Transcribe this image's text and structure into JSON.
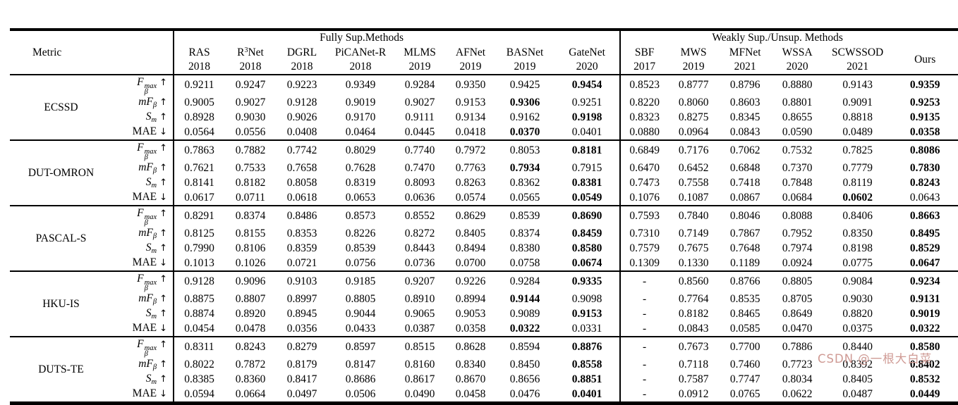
{
  "table": {
    "metric_header": "Metric",
    "fully_header": "Fully Sup.Methods",
    "weakly_header": "Weakly Sup./Unsup. Methods",
    "ours_label": "Ours",
    "methods": [
      {
        "pre": "RAS",
        "sup": "",
        "post": "",
        "year": "2018"
      },
      {
        "pre": "R",
        "sup": "3",
        "post": "Net",
        "year": "2018"
      },
      {
        "pre": "DGRL",
        "sup": "",
        "post": "",
        "year": "2018"
      },
      {
        "pre": "PiCANet-R",
        "sup": "",
        "post": "",
        "year": "2018"
      },
      {
        "pre": "MLMS",
        "sup": "",
        "post": "",
        "year": "2019"
      },
      {
        "pre": "AFNet",
        "sup": "",
        "post": "",
        "year": "2019"
      },
      {
        "pre": "BASNet",
        "sup": "",
        "post": "",
        "year": "2019"
      },
      {
        "pre": "GateNet",
        "sup": "",
        "post": "",
        "year": "2020"
      },
      {
        "pre": "SBF",
        "sup": "",
        "post": "",
        "year": "2017"
      },
      {
        "pre": "MWS",
        "sup": "",
        "post": "",
        "year": "2019"
      },
      {
        "pre": "MFNet",
        "sup": "",
        "post": "",
        "year": "2021"
      },
      {
        "pre": "WSSA",
        "sup": "",
        "post": "",
        "year": "2020"
      },
      {
        "pre": "SCWSSOD",
        "sup": "",
        "post": "",
        "year": "2021"
      }
    ],
    "metrics": [
      {
        "base": "F",
        "sup": "max",
        "sub": "β",
        "arrow": "↑",
        "italic": true
      },
      {
        "base": "mF",
        "sup": "",
        "sub": "β",
        "arrow": "↑",
        "italic": true
      },
      {
        "base": "S",
        "sup": "",
        "sub": "m",
        "arrow": "↑",
        "italic": true
      },
      {
        "base": "MAE",
        "sup": "",
        "sub": "",
        "arrow": "↓",
        "italic": false
      }
    ],
    "datasets": [
      {
        "name": "ECSSD",
        "rows": [
          [
            "0.9211",
            "0.9247",
            "0.9223",
            "0.9349",
            "0.9284",
            "0.9350",
            "0.9425",
            "0.9454",
            "0.8523",
            "0.8777",
            "0.8796",
            "0.8880",
            "0.9143",
            "0.9359"
          ],
          [
            "0.9005",
            "0.9027",
            "0.9128",
            "0.9019",
            "0.9027",
            "0.9153",
            "0.9306",
            "0.9251",
            "0.8220",
            "0.8060",
            "0.8603",
            "0.8801",
            "0.9091",
            "0.9253"
          ],
          [
            "0.8928",
            "0.9030",
            "0.9026",
            "0.9170",
            "0.9111",
            "0.9134",
            "0.9162",
            "0.9198",
            "0.8323",
            "0.8275",
            "0.8345",
            "0.8655",
            "0.8818",
            "0.9135"
          ],
          [
            "0.0564",
            "0.0556",
            "0.0408",
            "0.0464",
            "0.0445",
            "0.0418",
            "0.0370",
            "0.0401",
            "0.0880",
            "0.0964",
            "0.0843",
            "0.0590",
            "0.0489",
            "0.0358"
          ]
        ],
        "bold": [
          [
            7,
            13
          ],
          [
            6,
            13
          ],
          [
            7,
            13
          ],
          [
            6,
            13
          ]
        ]
      },
      {
        "name": "DUT-OMRON",
        "rows": [
          [
            "0.7863",
            "0.7882",
            "0.7742",
            "0.8029",
            "0.7740",
            "0.7972",
            "0.8053",
            "0.8181",
            "0.6849",
            "0.7176",
            "0.7062",
            "0.7532",
            "0.7825",
            "0.8086"
          ],
          [
            "0.7621",
            "0.7533",
            "0.7658",
            "0.7628",
            "0.7470",
            "0.7763",
            "0.7934",
            "0.7915",
            "0.6470",
            "0.6452",
            "0.6848",
            "0.7370",
            "0.7779",
            "0.7830"
          ],
          [
            "0.8141",
            "0.8182",
            "0.8058",
            "0.8319",
            "0.8093",
            "0.8263",
            "0.8362",
            "0.8381",
            "0.7473",
            "0.7558",
            "0.7418",
            "0.7848",
            "0.8119",
            "0.8243"
          ],
          [
            "0.0617",
            "0.0711",
            "0.0618",
            "0.0653",
            "0.0636",
            "0.0574",
            "0.0565",
            "0.0549",
            "0.1076",
            "0.1087",
            "0.0867",
            "0.0684",
            "0.0602",
            "0.0643"
          ]
        ],
        "bold": [
          [
            7,
            13
          ],
          [
            6,
            13
          ],
          [
            7,
            13
          ],
          [
            7,
            12
          ]
        ]
      },
      {
        "name": "PASCAL-S",
        "rows": [
          [
            "0.8291",
            "0.8374",
            "0.8486",
            "0.8573",
            "0.8552",
            "0.8629",
            "0.8539",
            "0.8690",
            "0.7593",
            "0.7840",
            "0.8046",
            "0.8088",
            "0.8406",
            "0.8663"
          ],
          [
            "0.8125",
            "0.8155",
            "0.8353",
            "0.8226",
            "0.8272",
            "0.8405",
            "0.8374",
            "0.8459",
            "0.7310",
            "0.7149",
            "0.7867",
            "0.7952",
            "0.8350",
            "0.8495"
          ],
          [
            "0.7990",
            "0.8106",
            "0.8359",
            "0.8539",
            "0.8443",
            "0.8494",
            "0.8380",
            "0.8580",
            "0.7579",
            "0.7675",
            "0.7648",
            "0.7974",
            "0.8198",
            "0.8529"
          ],
          [
            "0.1013",
            "0.1026",
            "0.0721",
            "0.0756",
            "0.0736",
            "0.0700",
            "0.0758",
            "0.0674",
            "0.1309",
            "0.1330",
            "0.1189",
            "0.0924",
            "0.0775",
            "0.0647"
          ]
        ],
        "bold": [
          [
            7,
            13
          ],
          [
            7,
            13
          ],
          [
            7,
            13
          ],
          [
            7,
            13
          ]
        ]
      },
      {
        "name": "HKU-IS",
        "rows": [
          [
            "0.9128",
            "0.9096",
            "0.9103",
            "0.9185",
            "0.9207",
            "0.9226",
            "0.9284",
            "0.9335",
            "-",
            "0.8560",
            "0.8766",
            "0.8805",
            "0.9084",
            "0.9234"
          ],
          [
            "0.8875",
            "0.8807",
            "0.8997",
            "0.8805",
            "0.8910",
            "0.8994",
            "0.9144",
            "0.9098",
            "-",
            "0.7764",
            "0.8535",
            "0.8705",
            "0.9030",
            "0.9131"
          ],
          [
            "0.8874",
            "0.8920",
            "0.8945",
            "0.9044",
            "0.9065",
            "0.9053",
            "0.9089",
            "0.9153",
            "-",
            "0.8182",
            "0.8465",
            "0.8649",
            "0.8820",
            "0.9019"
          ],
          [
            "0.0454",
            "0.0478",
            "0.0356",
            "0.0433",
            "0.0387",
            "0.0358",
            "0.0322",
            "0.0331",
            "-",
            "0.0843",
            "0.0585",
            "0.0470",
            "0.0375",
            "0.0322"
          ]
        ],
        "bold": [
          [
            7,
            13
          ],
          [
            6,
            13
          ],
          [
            7,
            13
          ],
          [
            6,
            13
          ]
        ]
      },
      {
        "name": "DUTS-TE",
        "rows": [
          [
            "0.8311",
            "0.8243",
            "0.8279",
            "0.8597",
            "0.8515",
            "0.8628",
            "0.8594",
            "0.8876",
            "-",
            "0.7673",
            "0.7700",
            "0.7886",
            "0.8440",
            "0.8580"
          ],
          [
            "0.8022",
            "0.7872",
            "0.8179",
            "0.8147",
            "0.8160",
            "0.8340",
            "0.8450",
            "0.8558",
            "-",
            "0.7118",
            "0.7460",
            "0.7723",
            "0.8392",
            "0.8402"
          ],
          [
            "0.8385",
            "0.8360",
            "0.8417",
            "0.8686",
            "0.8617",
            "0.8670",
            "0.8656",
            "0.8851",
            "-",
            "0.7587",
            "0.7747",
            "0.8034",
            "0.8405",
            "0.8532"
          ],
          [
            "0.0594",
            "0.0664",
            "0.0497",
            "0.0506",
            "0.0490",
            "0.0458",
            "0.0476",
            "0.0401",
            "-",
            "0.0912",
            "0.0765",
            "0.0622",
            "0.0487",
            "0.0449"
          ]
        ],
        "bold": [
          [
            7,
            13
          ],
          [
            7,
            13
          ],
          [
            7,
            13
          ],
          [
            7,
            13
          ]
        ]
      }
    ]
  },
  "watermark": {
    "text": "CSDN @一根大白菜",
    "color": "#cf9a94"
  }
}
